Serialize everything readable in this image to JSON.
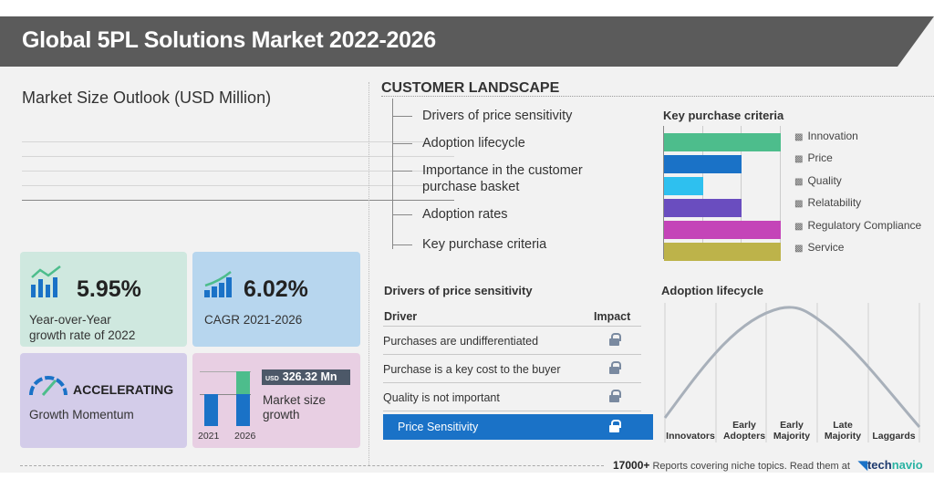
{
  "title": "Global 5PL Solutions Market 2022-2026",
  "market_size_outlook": "Market Size Outlook (USD Million)",
  "kpis": {
    "yoy": {
      "value": "5.95%",
      "label_line1": "Year-over-Year",
      "label_line2": "growth rate of 2022",
      "color": "#cfe8df"
    },
    "cagr": {
      "value": "6.02%",
      "label": "CAGR 2021-2026",
      "color": "#b7d6ee"
    },
    "momentum": {
      "value": "ACCELERATING",
      "label": "Growth Momentum",
      "color": "#d3cce9"
    },
    "growth": {
      "currency": "USD",
      "value": "326.32 Mn",
      "label_line1": "Market size",
      "label_line2": "growth",
      "years": [
        "2021",
        "2026"
      ],
      "color": "#e8cfe3"
    }
  },
  "customer_landscape": {
    "title": "CUSTOMER LANDSCAPE",
    "items": [
      "Drivers of price sensitivity",
      "Adoption lifecycle",
      "Importance in the customer",
      "purchase basket",
      "Adoption rates",
      "Key purchase criteria"
    ]
  },
  "chart_data": [
    {
      "type": "bar",
      "title": "Key purchase criteria",
      "orientation": "horizontal",
      "categories": [
        "Innovation",
        "Price",
        "Quality",
        "Relatability",
        "Regulatory Compliance",
        "Service"
      ],
      "values": [
        3,
        2,
        1,
        2,
        3,
        3
      ],
      "xlim": [
        0,
        3
      ],
      "colors": [
        "#4dbd8c",
        "#1a72c7",
        "#2ec0ef",
        "#6a4dbf",
        "#c444b8",
        "#bdb34a"
      ],
      "grid": true,
      "legend": "right"
    },
    {
      "type": "line",
      "title": "Adoption lifecycle",
      "categories": [
        "Innovators",
        "Early Adopters",
        "Early Majority",
        "Late Majority",
        "Laggards"
      ],
      "shape": "bell curve"
    }
  ],
  "price_sensitivity": {
    "title": "Drivers of price sensitivity",
    "col_driver": "Driver",
    "col_impact": "Impact",
    "rows": [
      "Purchases are undifferentiated",
      "Purchase is a key cost to the buyer",
      "Quality is not important"
    ],
    "summary": "Price Sensitivity",
    "icon": "lock-icon"
  },
  "adoption_labels": [
    [
      "",
      "Innovators"
    ],
    [
      "Early",
      "Adopters"
    ],
    [
      "Early",
      "Majority"
    ],
    [
      "Late",
      "Majority"
    ],
    [
      "",
      "Laggards"
    ]
  ],
  "footer": {
    "count": "17000+",
    "text": "Reports covering niche topics. Read them at",
    "brand1": "tech",
    "brand2": "navio"
  }
}
